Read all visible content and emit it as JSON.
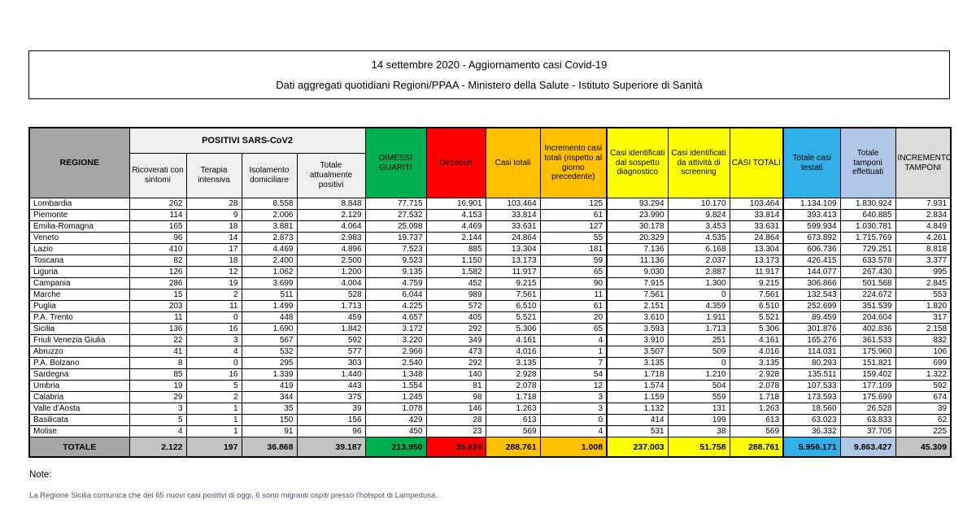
{
  "title_box": {
    "line1": "14 settembre 2020 - Aggiornamento casi Covid-19",
    "line2": "Dati aggregati quotidiani Regioni/PPAA - Ministero della Salute - Istituto Superiore di Sanità"
  },
  "table": {
    "group_header": "POSITIVI SARS-CoV2",
    "columns": [
      {
        "label": "REGIONE"
      },
      {
        "label": "Ricoverati con sintomi"
      },
      {
        "label": "Terapia intensiva"
      },
      {
        "label": "Isolamento domiciliare"
      },
      {
        "label": "Totale attualmente positivi"
      },
      {
        "label": "DIMESSI GUARITI"
      },
      {
        "label": "Deceduti"
      },
      {
        "label": "Casi totali"
      },
      {
        "label": "Incremento casi totali (rispetto al giorno precedente)"
      },
      {
        "label": "Casi identificati dal sospetto diagnostico"
      },
      {
        "label": "Casi identificati da attività di screening"
      },
      {
        "label": "CASI TOTALI"
      },
      {
        "label": "Totale casi testati"
      },
      {
        "label": "Totale tamponi effettuati"
      },
      {
        "label": "INCREMENTO TAMPONI"
      }
    ],
    "rows": [
      [
        "Lombardia",
        "262",
        "28",
        "8.558",
        "8.848",
        "77.715",
        "16.901",
        "103.464",
        "125",
        "93.294",
        "10.170",
        "103.464",
        "1.134.109",
        "1.830.924",
        "7.931"
      ],
      [
        "Piemonte",
        "114",
        "9",
        "2.006",
        "2.129",
        "27.532",
        "4.153",
        "33.814",
        "61",
        "23.990",
        "9.824",
        "33.814",
        "393.413",
        "640.885",
        "2.834"
      ],
      [
        "Emilia-Romagna",
        "165",
        "18",
        "3.881",
        "4.064",
        "25.098",
        "4.469",
        "33.631",
        "127",
        "30.178",
        "3.453",
        "33.631",
        "599.934",
        "1.030.781",
        "4.849"
      ],
      [
        "Veneto",
        "96",
        "14",
        "2.873",
        "2.983",
        "19.737",
        "2.144",
        "24.864",
        "55",
        "20.329",
        "4.535",
        "24.864",
        "673.892",
        "1.715.769",
        "4.261"
      ],
      [
        "Lazio",
        "410",
        "17",
        "4.469",
        "4.896",
        "7.523",
        "885",
        "13.304",
        "181",
        "7.136",
        "6.168",
        "13.304",
        "606.736",
        "729.251",
        "8.818"
      ],
      [
        "Toscana",
        "82",
        "18",
        "2.400",
        "2.500",
        "9.523",
        "1.150",
        "13.173",
        "59",
        "11.136",
        "2.037",
        "13.173",
        "426.415",
        "633.578",
        "3.377"
      ],
      [
        "Liguria",
        "126",
        "12",
        "1.062",
        "1.200",
        "9.135",
        "1.582",
        "11.917",
        "65",
        "9.030",
        "2.887",
        "11.917",
        "144.077",
        "267.430",
        "995"
      ],
      [
        "Campania",
        "286",
        "19",
        "3.699",
        "4.004",
        "4.759",
        "452",
        "9.215",
        "90",
        "7.915",
        "1.300",
        "9.215",
        "306.866",
        "501.568",
        "2.845"
      ],
      [
        "Marche",
        "15",
        "2",
        "511",
        "528",
        "6.044",
        "989",
        "7.561",
        "11",
        "7.561",
        "0",
        "7.561",
        "132.543",
        "224.672",
        "553"
      ],
      [
        "Puglia",
        "203",
        "11",
        "1.499",
        "1.713",
        "4.225",
        "572",
        "6.510",
        "61",
        "2.151",
        "4.359",
        "6.510",
        "252.699",
        "351.539",
        "1.820"
      ],
      [
        "P.A. Trento",
        "11",
        "0",
        "448",
        "459",
        "4.657",
        "405",
        "5.521",
        "20",
        "3.610",
        "1.911",
        "5.521",
        "89.459",
        "204.604",
        "317"
      ],
      [
        "Sicilia",
        "136",
        "16",
        "1.690",
        "1.842",
        "3.172",
        "292",
        "5.306",
        "65",
        "3.593",
        "1.713",
        "5.306",
        "301.876",
        "402.836",
        "2.158"
      ],
      [
        "Friuli Venezia Giulia",
        "22",
        "3",
        "567",
        "592",
        "3.220",
        "349",
        "4.161",
        "4",
        "3.910",
        "251",
        "4.161",
        "165.276",
        "361.533",
        "832"
      ],
      [
        "Abruzzo",
        "41",
        "4",
        "532",
        "577",
        "2.966",
        "473",
        "4.016",
        "1",
        "3.507",
        "509",
        "4.016",
        "114.031",
        "175.960",
        "106"
      ],
      [
        "P.A. Bolzano",
        "8",
        "0",
        "295",
        "303",
        "2.540",
        "292",
        "3.135",
        "7",
        "3.135",
        "0",
        "3.135",
        "80.293",
        "151.821",
        "699"
      ],
      [
        "Sardegna",
        "85",
        "16",
        "1.339",
        "1.440",
        "1.348",
        "140",
        "2.928",
        "54",
        "1.718",
        "1.210",
        "2.928",
        "135.511",
        "159.402",
        "1.322"
      ],
      [
        "Umbria",
        "19",
        "5",
        "419",
        "443",
        "1.554",
        "81",
        "2.078",
        "12",
        "1.574",
        "504",
        "2.078",
        "107.533",
        "177.109",
        "592"
      ],
      [
        "Calabria",
        "29",
        "2",
        "344",
        "375",
        "1.245",
        "98",
        "1.718",
        "3",
        "1.159",
        "559",
        "1.718",
        "173.593",
        "175.699",
        "674"
      ],
      [
        "Valle d'Aosta",
        "3",
        "1",
        "35",
        "39",
        "1.078",
        "146",
        "1.263",
        "3",
        "1.132",
        "131",
        "1.263",
        "18.560",
        "26.528",
        "39"
      ],
      [
        "Basilicata",
        "5",
        "1",
        "150",
        "156",
        "429",
        "28",
        "613",
        "0",
        "414",
        "199",
        "613",
        "63.023",
        "63.833",
        "62"
      ],
      [
        "Molise",
        "4",
        "1",
        "91",
        "96",
        "450",
        "23",
        "569",
        "4",
        "531",
        "38",
        "569",
        "36.332",
        "37.705",
        "225"
      ]
    ],
    "totals": [
      "TOTALE",
      "2.122",
      "197",
      "36.868",
      "39.187",
      "213.950",
      "35.624",
      "288.761",
      "1.008",
      "237.003",
      "51.758",
      "288.761",
      "5.956.171",
      "9.863.427",
      "45.309"
    ]
  },
  "notes": {
    "heading": "Note:",
    "body": "La Regione Sicilia comunica che dei 65 nuovi casi positivi di oggi, 6 sono migranti ospiti presso l'hotspot di Lampedusa."
  },
  "colors": {
    "header_gray": "#a6a6a6",
    "subheader_gray": "#f1f1f1",
    "green": "#00b050",
    "red": "#ff0000",
    "orange": "#ffc000",
    "yellow": "#ffff00",
    "blue": "#2fb0e8",
    "light_blue": "#b1c7e8",
    "incr_gray": "#dcdcdc",
    "totale_gray": "#c3c3c3"
  }
}
